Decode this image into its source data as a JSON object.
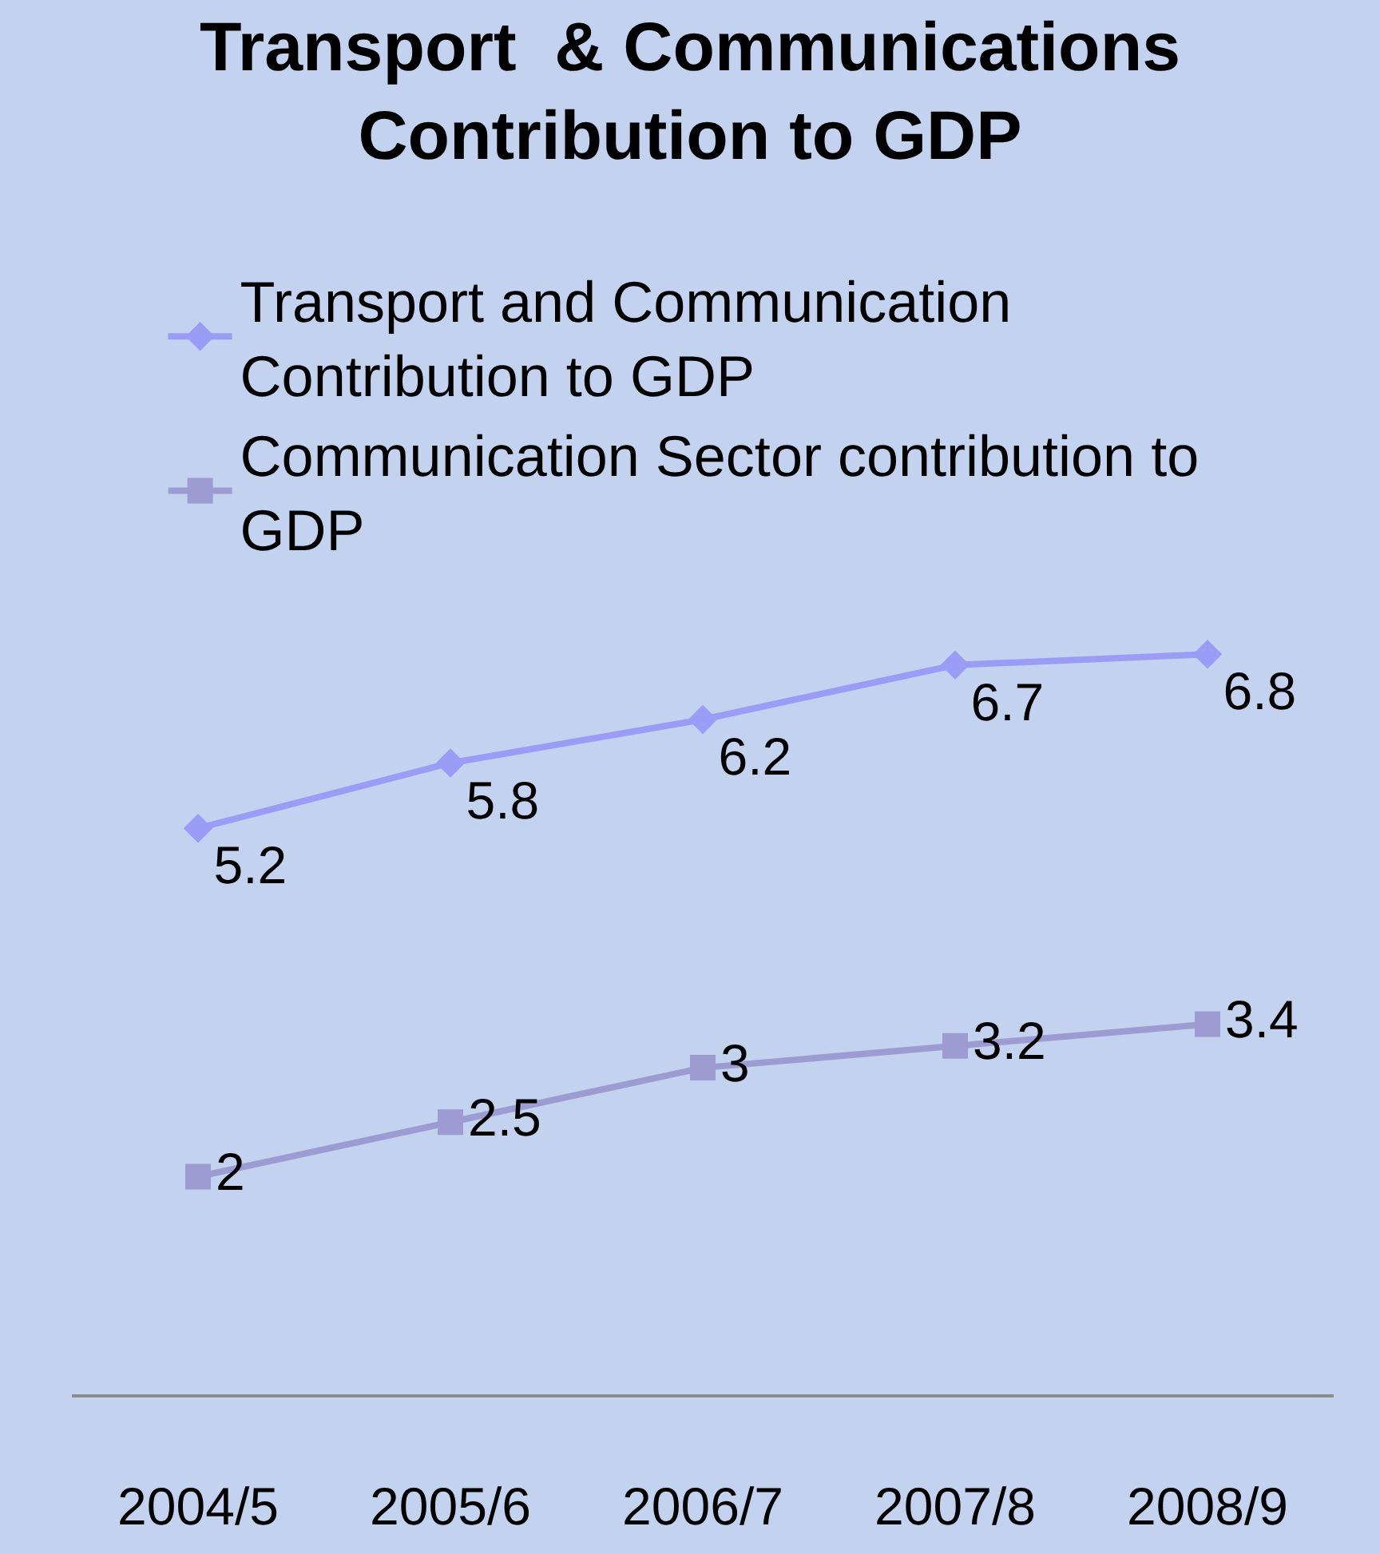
{
  "chart_data": {
    "type": "line",
    "title": "Transport  & Communications Contribution to GDP",
    "categories": [
      "2004/5",
      "2005/6",
      "2006/7",
      "2007/8",
      "2008/9"
    ],
    "series": [
      {
        "name": "Transport and Communication Contribution to GDP",
        "color": "#9a9cf5",
        "values": [
          5.2,
          5.8,
          6.2,
          6.7,
          6.8
        ],
        "marker": "diamond"
      },
      {
        "name": "Communication Sector contribution to GDP",
        "color": "#9c9cd2",
        "values": [
          2,
          2.5,
          3,
          3.2,
          3.4
        ],
        "marker": "square"
      }
    ],
    "data_labels": true,
    "legend": "top left",
    "grid": false,
    "tick_labels": "x"
  }
}
